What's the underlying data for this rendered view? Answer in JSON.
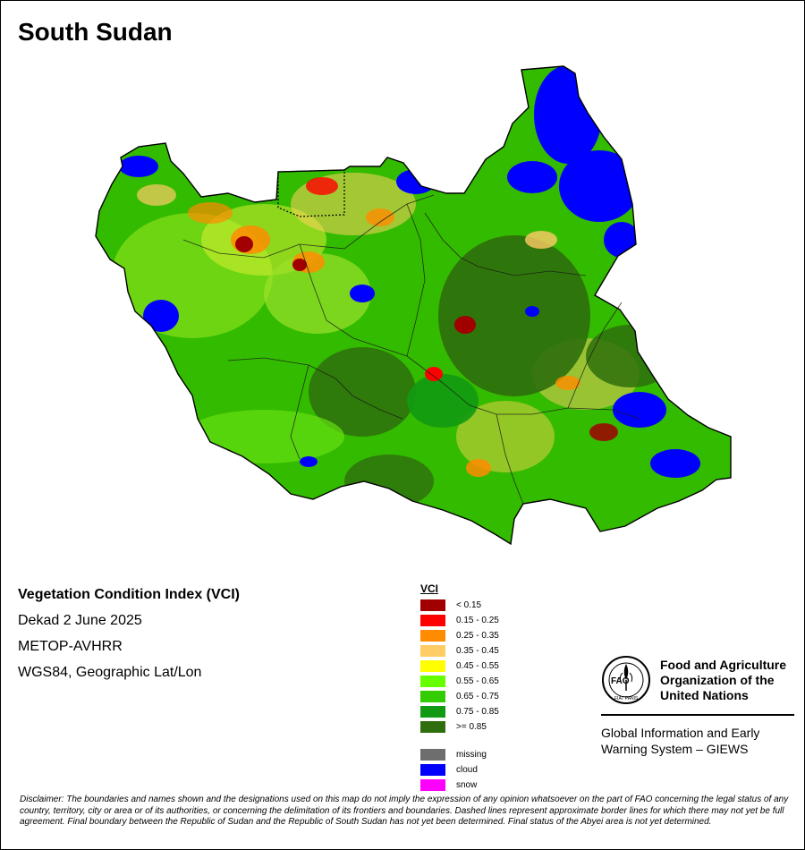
{
  "title": "South Sudan",
  "info": {
    "index_title": "Vegetation Condition Index (VCI)",
    "period": "Dekad 2 June 2025",
    "sensor": "METOP-AVHRR",
    "projection": "WGS84, Geographic Lat/Lon"
  },
  "legend": {
    "title": "VCI",
    "classes": [
      {
        "label": "< 0.15",
        "color": "#a00000"
      },
      {
        "label": "0.15 - 0.25",
        "color": "#ff0000"
      },
      {
        "label": "0.25 - 0.35",
        "color": "#ff8c00"
      },
      {
        "label": "0.35 - 0.45",
        "color": "#ffcc66"
      },
      {
        "label": "0.45 - 0.55",
        "color": "#ffff00"
      },
      {
        "label": "0.55 - 0.65",
        "color": "#66ff00"
      },
      {
        "label": "0.65 - 0.75",
        "color": "#33cc00"
      },
      {
        "label": "0.75 - 0.85",
        "color": "#129a12"
      },
      {
        "label": ">= 0.85",
        "color": "#2e6e0c"
      }
    ],
    "other": [
      {
        "label": "missing",
        "color": "#6e6e6e"
      },
      {
        "label": "cloud",
        "color": "#0000ff"
      },
      {
        "label": "snow",
        "color": "#ff00ff"
      }
    ]
  },
  "organization": {
    "logo_text": "FAO",
    "logo_motto": "FIAT PANIS",
    "name_line1": "Food and Agriculture",
    "name_line2": "Organization of the",
    "name_line3": "United Nations",
    "system_line1": "Global Information and Early",
    "system_line2": "Warning System – GIEWS"
  },
  "disclaimer": "Disclaimer: The boundaries and names shown and the designations used on this map do not imply the expression of any opinion whatsoever on the part of FAO concerning the legal status of any country, territory, city or area or of its authorities, or concerning the delimitation of its frontiers and boundaries. Dashed lines represent approximate border lines for which there may not yet be full agreement. Final boundary between the Republic of Sudan and the Republic of South Sudan has not yet been determined. Final status of the Abyei area is not yet determined."
}
